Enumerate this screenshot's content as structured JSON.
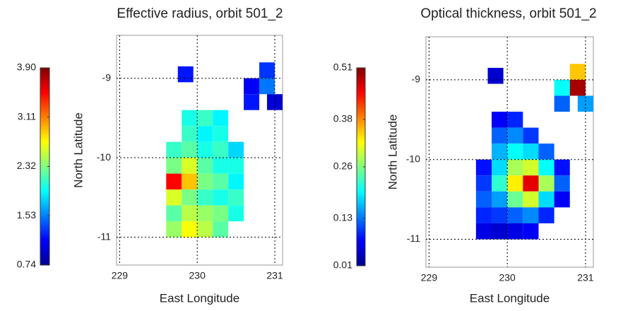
{
  "chart_data": [
    {
      "type": "heatmap",
      "title": "Effective radius, orbit 501_2",
      "xlabel": "East Longitude",
      "ylabel": "North Latitude",
      "colormap": "jet",
      "grid": true,
      "xlim": [
        228.96,
        231.1
      ],
      "ylim": [
        -11.35,
        -8.46
      ],
      "xticks": [
        229,
        230,
        231
      ],
      "yticks": [
        -11,
        -10,
        -9
      ],
      "clim": [
        0.74,
        3.9
      ],
      "cticks": [
        0.74,
        1.53,
        2.32,
        3.11,
        {
          "value": 3.9,
          "label": "3.90"
        }
      ],
      "x": [
        229.7,
        229.7,
        229.7,
        229.7,
        229.7,
        229.7,
        229.9,
        229.9,
        229.9,
        229.9,
        229.9,
        229.9,
        229.9,
        229.9,
        230.1,
        230.1,
        230.1,
        230.1,
        230.1,
        230.1,
        230.1,
        230.1,
        230.3,
        230.3,
        230.3,
        230.3,
        230.3,
        230.3,
        230.3,
        230.3,
        230.5,
        230.5,
        230.5,
        230.5,
        230.5,
        230.7,
        230.9,
        230.9,
        231.0,
        230.7,
        229.85
      ],
      "y": [
        -9.9,
        -10.1,
        -10.3,
        -10.5,
        -10.7,
        -10.9,
        -9.5,
        -9.7,
        -9.9,
        -10.1,
        -10.3,
        -10.5,
        -10.7,
        -10.9,
        -9.5,
        -9.7,
        -9.9,
        -10.1,
        -10.3,
        -10.5,
        -10.7,
        -10.9,
        -9.5,
        -9.7,
        -9.9,
        -10.1,
        -10.3,
        -10.5,
        -10.7,
        -10.9,
        -9.9,
        -10.1,
        -10.3,
        -10.5,
        -10.7,
        -9.1,
        -8.9,
        -9.1,
        -9.3,
        -9.3,
        -8.95
      ],
      "values": [
        2.1,
        2.3,
        3.5,
        2.6,
        2.2,
        2.4,
        2.0,
        2.1,
        2.2,
        2.6,
        2.9,
        2.3,
        2.5,
        2.7,
        2.1,
        1.9,
        2.0,
        2.2,
        2.3,
        2.1,
        2.4,
        2.5,
        1.9,
        2.0,
        2.1,
        2.0,
        2.2,
        2.0,
        2.3,
        2.2,
        1.8,
        2.0,
        1.9,
        2.1,
        2.0,
        1.1,
        1.3,
        1.5,
        1.0,
        1.2,
        1.2
      ]
    },
    {
      "type": "heatmap",
      "title": "Optical thickness, orbit 501_2",
      "xlabel": "East Longitude",
      "ylabel": "North Latitude",
      "colormap": "jet",
      "grid": true,
      "xlim": [
        228.96,
        231.1
      ],
      "ylim": [
        -11.35,
        -8.46
      ],
      "xticks": [
        229,
        230,
        231
      ],
      "yticks": [
        -11,
        -10,
        -9
      ],
      "clim": [
        0.01,
        0.51
      ],
      "cticks": [
        0.01,
        0.13,
        0.26,
        0.38,
        0.51
      ],
      "x": [
        229.7,
        229.7,
        229.7,
        229.7,
        229.7,
        229.9,
        229.9,
        229.9,
        229.9,
        229.9,
        229.9,
        229.9,
        229.9,
        230.1,
        230.1,
        230.1,
        230.1,
        230.1,
        230.1,
        230.1,
        230.1,
        230.3,
        230.3,
        230.3,
        230.3,
        230.3,
        230.3,
        230.3,
        230.5,
        230.5,
        230.5,
        230.5,
        230.5,
        230.7,
        230.7,
        230.7,
        230.7,
        230.7,
        230.9,
        230.9,
        231.0,
        229.85
      ],
      "y": [
        -10.1,
        -10.3,
        -10.5,
        -10.7,
        -10.9,
        -9.5,
        -9.7,
        -9.9,
        -10.1,
        -10.3,
        -10.5,
        -10.7,
        -10.9,
        -9.5,
        -9.7,
        -9.9,
        -10.1,
        -10.3,
        -10.5,
        -10.7,
        -10.9,
        -9.7,
        -9.9,
        -10.1,
        -10.3,
        -10.5,
        -10.7,
        -10.9,
        -9.9,
        -10.1,
        -10.3,
        -10.5,
        -10.7,
        -10.1,
        -10.3,
        -10.5,
        -9.3,
        -9.1,
        -9.1,
        -8.9,
        -9.3,
        -8.95
      ],
      "values": [
        0.08,
        0.1,
        0.12,
        0.09,
        0.06,
        0.07,
        0.12,
        0.16,
        0.18,
        0.22,
        0.15,
        0.1,
        0.05,
        0.09,
        0.14,
        0.2,
        0.28,
        0.33,
        0.25,
        0.12,
        0.06,
        0.1,
        0.18,
        0.3,
        0.46,
        0.3,
        0.14,
        0.07,
        0.12,
        0.2,
        0.28,
        0.18,
        0.09,
        0.08,
        0.12,
        0.07,
        0.12,
        0.2,
        0.49,
        0.35,
        0.15,
        0.05
      ]
    }
  ]
}
